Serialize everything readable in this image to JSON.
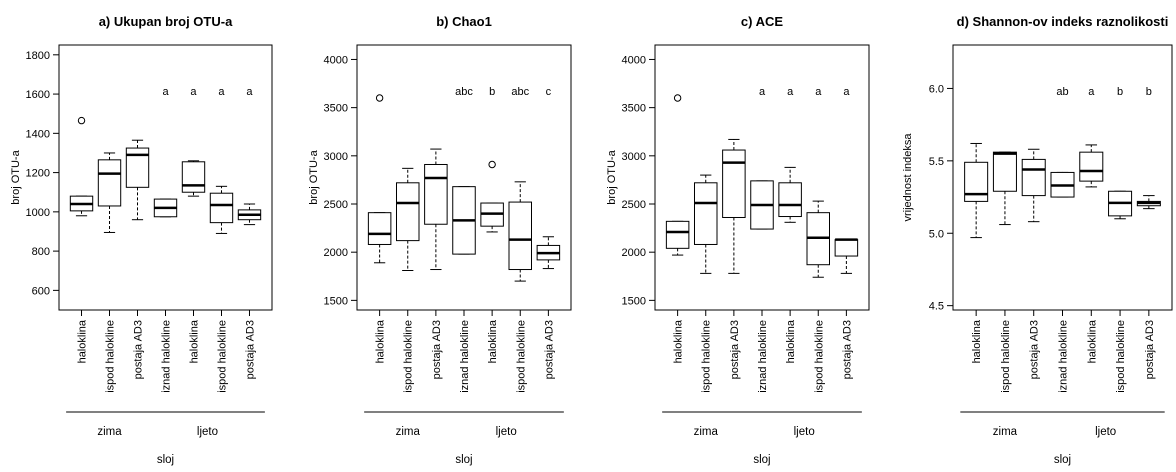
{
  "chart_data": [
    {
      "type": "boxplot",
      "title": "a) Ukupan broj OTU-a",
      "ylabel": "broj OTU-a",
      "xlabel": "sloj",
      "ylim": [
        500,
        1850
      ],
      "yticks": [
        600,
        800,
        1000,
        1200,
        1400,
        1600,
        1800
      ],
      "categories": [
        "haloklina",
        "ispod halokline",
        "postaja AD3",
        "iznad halokline",
        "haloklina",
        "ispod halokline",
        "postaja AD3"
      ],
      "groups": [
        {
          "label": "zima",
          "categories": [
            0,
            1,
            2
          ]
        },
        {
          "label": "ljeto",
          "categories": [
            3,
            4,
            5,
            6
          ]
        }
      ],
      "significance": [
        "",
        "",
        "",
        "a",
        "a",
        "a",
        "a"
      ],
      "boxes": [
        {
          "min": 980,
          "q1": 1005,
          "median": 1040,
          "q3": 1080,
          "max": 1080,
          "outliers": [
            1465
          ]
        },
        {
          "min": 895,
          "q1": 1030,
          "median": 1195,
          "q3": 1265,
          "max": 1300,
          "outliers": []
        },
        {
          "min": 960,
          "q1": 1125,
          "median": 1290,
          "q3": 1325,
          "max": 1365,
          "outliers": []
        },
        {
          "min": 975,
          "q1": 975,
          "median": 1020,
          "q3": 1065,
          "max": 1065,
          "outliers": []
        },
        {
          "min": 1080,
          "q1": 1100,
          "median": 1135,
          "q3": 1255,
          "max": 1260,
          "outliers": []
        },
        {
          "min": 890,
          "q1": 945,
          "median": 1035,
          "q3": 1095,
          "max": 1130,
          "outliers": []
        },
        {
          "min": 935,
          "q1": 960,
          "median": 985,
          "q3": 1010,
          "max": 1040,
          "outliers": []
        }
      ]
    },
    {
      "type": "boxplot",
      "title": "b) Chao1",
      "ylabel": "broj OTU-a",
      "xlabel": "sloj",
      "ylim": [
        1400,
        4150
      ],
      "yticks": [
        1500,
        2000,
        2500,
        3000,
        3500,
        4000
      ],
      "categories": [
        "haloklina",
        "ispod halokline",
        "postaja AD3",
        "iznad halokline",
        "haloklina",
        "ispod halokline",
        "postaja AD3"
      ],
      "groups": [
        {
          "label": "zima",
          "categories": [
            0,
            1,
            2
          ]
        },
        {
          "label": "ljeto",
          "categories": [
            3,
            4,
            5,
            6
          ]
        }
      ],
      "significance": [
        "",
        "",
        "",
        "abc",
        "b",
        "abc",
        "c"
      ],
      "boxes": [
        {
          "min": 1890,
          "q1": 2080,
          "median": 2190,
          "q3": 2410,
          "max": 2410,
          "outliers": [
            3600
          ]
        },
        {
          "min": 1810,
          "q1": 2120,
          "median": 2510,
          "q3": 2720,
          "max": 2870,
          "outliers": []
        },
        {
          "min": 1820,
          "q1": 2290,
          "median": 2770,
          "q3": 2910,
          "max": 3070,
          "outliers": []
        },
        {
          "min": 1980,
          "q1": 1980,
          "median": 2330,
          "q3": 2680,
          "max": 2680,
          "outliers": []
        },
        {
          "min": 2210,
          "q1": 2270,
          "median": 2400,
          "q3": 2510,
          "max": 2510,
          "outliers": [
            2910
          ]
        },
        {
          "min": 1700,
          "q1": 1820,
          "median": 2130,
          "q3": 2520,
          "max": 2730,
          "outliers": []
        },
        {
          "min": 1830,
          "q1": 1920,
          "median": 1990,
          "q3": 2070,
          "max": 2160,
          "outliers": []
        }
      ]
    },
    {
      "type": "boxplot",
      "title": "c) ACE",
      "ylabel": "broj OTU-a",
      "xlabel": "sloj",
      "ylim": [
        1400,
        4150
      ],
      "yticks": [
        1500,
        2000,
        2500,
        3000,
        3500,
        4000
      ],
      "categories": [
        "haloklina",
        "ispod halokline",
        "postaja AD3",
        "iznad halokline",
        "haloklina",
        "ispod halokline",
        "postaja AD3"
      ],
      "groups": [
        {
          "label": "zima",
          "categories": [
            0,
            1,
            2
          ]
        },
        {
          "label": "ljeto",
          "categories": [
            3,
            4,
            5,
            6
          ]
        }
      ],
      "significance": [
        "",
        "",
        "",
        "a",
        "a",
        "a",
        "a"
      ],
      "boxes": [
        {
          "min": 1970,
          "q1": 2040,
          "median": 2210,
          "q3": 2320,
          "max": 2320,
          "outliers": [
            3600
          ]
        },
        {
          "min": 1780,
          "q1": 2080,
          "median": 2510,
          "q3": 2720,
          "max": 2800,
          "outliers": []
        },
        {
          "min": 1780,
          "q1": 2360,
          "median": 2930,
          "q3": 3060,
          "max": 3170,
          "outliers": []
        },
        {
          "min": 2240,
          "q1": 2240,
          "median": 2490,
          "q3": 2740,
          "max": 2740,
          "outliers": []
        },
        {
          "min": 2310,
          "q1": 2370,
          "median": 2490,
          "q3": 2720,
          "max": 2880,
          "outliers": []
        },
        {
          "min": 1740,
          "q1": 1870,
          "median": 2150,
          "q3": 2410,
          "max": 2530,
          "outliers": []
        },
        {
          "min": 1780,
          "q1": 1960,
          "median": 2130,
          "q3": 2130,
          "max": 2130,
          "outliers": []
        }
      ]
    },
    {
      "type": "boxplot",
      "title": "d) Shannon-ov indeks raznolikosti",
      "ylabel": "vrijednost indeksa",
      "xlabel": "sloj",
      "ylim": [
        4.47,
        6.3
      ],
      "yticks": [
        4.5,
        5.0,
        5.5,
        6.0
      ],
      "ytick_labels": [
        "4.5",
        "5.0",
        "5.5",
        "6.0"
      ],
      "categories": [
        "haloklina",
        "ispod halokline",
        "postaja AD3",
        "iznad halokline",
        "haloklina",
        "ispod halokline",
        "postaja AD3"
      ],
      "groups": [
        {
          "label": "zima",
          "categories": [
            0,
            1,
            2
          ]
        },
        {
          "label": "ljeto",
          "categories": [
            3,
            4,
            5,
            6
          ]
        }
      ],
      "significance": [
        "",
        "",
        "",
        "ab",
        "a",
        "b",
        "b"
      ],
      "boxes": [
        {
          "min": 4.97,
          "q1": 5.22,
          "median": 5.27,
          "q3": 5.49,
          "max": 5.62,
          "outliers": []
        },
        {
          "min": 5.06,
          "q1": 5.29,
          "median": 5.55,
          "q3": 5.56,
          "max": 5.56,
          "outliers": []
        },
        {
          "min": 5.08,
          "q1": 5.26,
          "median": 5.44,
          "q3": 5.51,
          "max": 5.58,
          "outliers": []
        },
        {
          "min": 5.25,
          "q1": 5.25,
          "median": 5.33,
          "q3": 5.42,
          "max": 5.42,
          "outliers": []
        },
        {
          "min": 5.32,
          "q1": 5.36,
          "median": 5.43,
          "q3": 5.56,
          "max": 5.61,
          "outliers": []
        },
        {
          "min": 5.1,
          "q1": 5.12,
          "median": 5.21,
          "q3": 5.29,
          "max": 5.29,
          "outliers": []
        },
        {
          "min": 5.17,
          "q1": 5.19,
          "median": 5.21,
          "q3": 5.22,
          "max": 5.26,
          "outliers": []
        }
      ]
    }
  ]
}
